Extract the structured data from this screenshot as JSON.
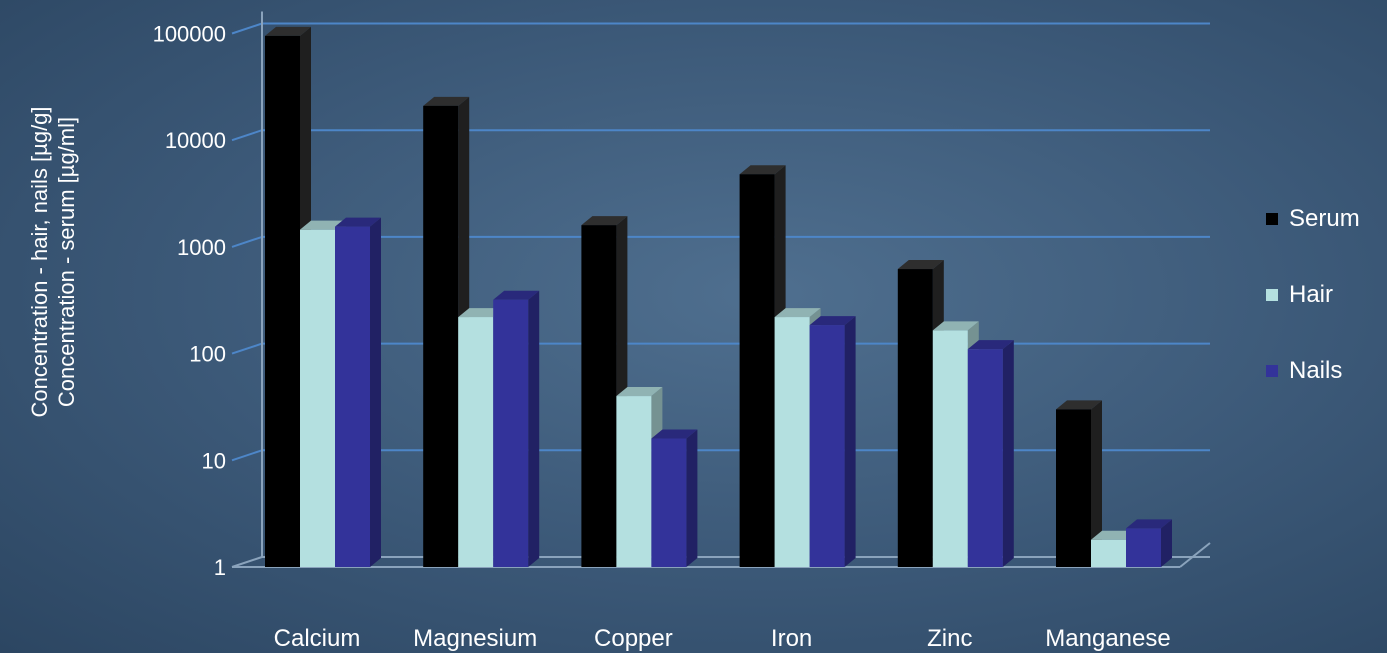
{
  "chart_data": {
    "type": "bar",
    "log_scale": true,
    "ylim": [
      1,
      100000
    ],
    "yticks": [
      "1",
      "10",
      "100",
      "1000",
      "10000",
      "100000"
    ],
    "ylabel_lines": [
      "Concentration - hair, nails [µg/g]",
      "Concentration - serum [µg/ml]"
    ],
    "categories": [
      "Calcium",
      "Magnesium",
      "Copper",
      "Iron",
      "Zinc",
      "Manganese"
    ],
    "series": [
      {
        "name": "Serum",
        "color": "#000000",
        "values": [
          95000,
          21000,
          1600,
          4800,
          620,
          30
        ]
      },
      {
        "name": "Hair",
        "color": "#b4e0e0",
        "values": [
          1450,
          220,
          40,
          220,
          165,
          1.8
        ]
      },
      {
        "name": "Nails",
        "color": "#33339a",
        "values": [
          1550,
          320,
          16,
          185,
          110,
          2.3
        ]
      }
    ],
    "grid": true,
    "legend_position": "right"
  }
}
